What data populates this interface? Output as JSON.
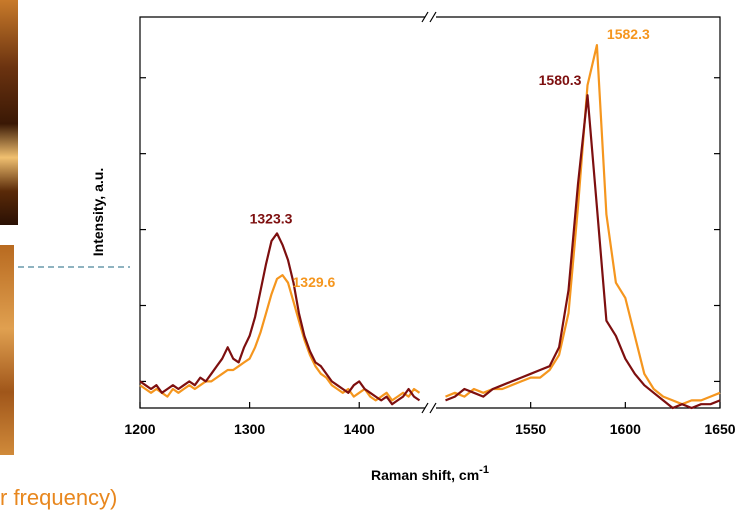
{
  "chart_data": {
    "type": "line",
    "x_label": "Raman shift, cm",
    "x_label_sup": "-1",
    "y_label": "Intensity, a.u.",
    "ylim": [
      0.65,
      5.8
    ],
    "yticks": [
      1,
      2,
      3,
      4,
      5
    ],
    "fragment_text": "r frequency)",
    "segments": [
      {
        "xlim": [
          1200,
          1460
        ],
        "xticks": [
          1200,
          1300,
          1400
        ],
        "x": [
          1200,
          1205,
          1210,
          1215,
          1220,
          1225,
          1230,
          1235,
          1240,
          1245,
          1250,
          1255,
          1260,
          1265,
          1270,
          1275,
          1280,
          1285,
          1290,
          1295,
          1300,
          1305,
          1310,
          1315,
          1320,
          1325,
          1330,
          1335,
          1340,
          1345,
          1350,
          1355,
          1360,
          1365,
          1370,
          1375,
          1380,
          1385,
          1390,
          1395,
          1400,
          1405,
          1410,
          1415,
          1420,
          1425,
          1430,
          1435,
          1440,
          1445,
          1450,
          1455
        ],
        "series": [
          {
            "color": "#f5961e",
            "values": [
              0.95,
              0.9,
              0.85,
              0.9,
              0.85,
              0.8,
              0.9,
              0.85,
              0.9,
              0.95,
              0.9,
              0.95,
              1.0,
              1.0,
              1.05,
              1.1,
              1.15,
              1.15,
              1.2,
              1.25,
              1.3,
              1.45,
              1.65,
              1.9,
              2.15,
              2.35,
              2.4,
              2.3,
              2.05,
              1.8,
              1.55,
              1.35,
              1.2,
              1.1,
              1.05,
              0.95,
              0.9,
              0.85,
              0.9,
              0.8,
              0.85,
              0.9,
              0.8,
              0.75,
              0.8,
              0.85,
              0.75,
              0.8,
              0.85,
              0.8,
              0.9,
              0.85
            ]
          },
          {
            "color": "#7d0f0f",
            "values": [
              1.0,
              0.95,
              0.9,
              0.95,
              0.85,
              0.9,
              0.95,
              0.9,
              0.95,
              1.0,
              0.95,
              1.05,
              1.0,
              1.1,
              1.2,
              1.3,
              1.45,
              1.3,
              1.25,
              1.45,
              1.6,
              1.85,
              2.2,
              2.55,
              2.85,
              2.95,
              2.8,
              2.6,
              2.3,
              1.9,
              1.6,
              1.4,
              1.25,
              1.2,
              1.1,
              1.0,
              0.95,
              0.9,
              0.85,
              0.95,
              1.0,
              0.9,
              0.85,
              0.8,
              0.75,
              0.8,
              0.7,
              0.75,
              0.8,
              0.9,
              0.8,
              0.75
            ]
          }
        ]
      },
      {
        "xlim": [
          1500,
          1650
        ],
        "xticks": [
          1550,
          1600,
          1650
        ],
        "x": [
          1505,
          1510,
          1515,
          1520,
          1525,
          1530,
          1535,
          1540,
          1545,
          1550,
          1555,
          1560,
          1565,
          1570,
          1575,
          1580,
          1585,
          1590,
          1595,
          1600,
          1605,
          1610,
          1615,
          1620,
          1625,
          1630,
          1635,
          1640,
          1645,
          1650
        ],
        "series": [
          {
            "color": "#f5961e",
            "values": [
              0.8,
              0.85,
              0.8,
              0.9,
              0.85,
              0.9,
              0.9,
              0.95,
              1.0,
              1.05,
              1.05,
              1.15,
              1.35,
              1.9,
              3.3,
              4.9,
              5.43,
              3.2,
              2.3,
              2.1,
              1.6,
              1.1,
              0.9,
              0.8,
              0.75,
              0.7,
              0.75,
              0.75,
              0.8,
              0.85
            ]
          },
          {
            "color": "#7d0f0f",
            "values": [
              0.75,
              0.8,
              0.9,
              0.85,
              0.8,
              0.9,
              0.95,
              1.0,
              1.05,
              1.1,
              1.15,
              1.2,
              1.45,
              2.2,
              3.6,
              4.77,
              3.3,
              1.8,
              1.6,
              1.3,
              1.1,
              0.95,
              0.85,
              0.75,
              0.65,
              0.7,
              0.65,
              0.7,
              0.7,
              0.75
            ]
          }
        ]
      }
    ],
    "annotations": [
      {
        "text": "1323.3",
        "segment": 0,
        "series": 1
      },
      {
        "text": "1329.6",
        "segment": 0,
        "series": 0
      },
      {
        "text": "1580.3",
        "segment": 1,
        "series": 1
      },
      {
        "text": "1582.3",
        "segment": 1,
        "series": 0
      }
    ]
  }
}
